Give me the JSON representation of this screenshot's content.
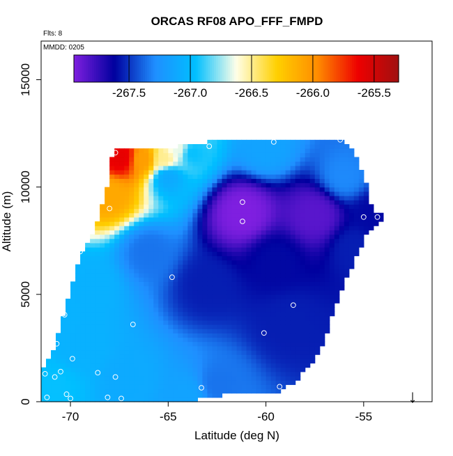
{
  "chart_data": {
    "type": "heatmap",
    "title": "ORCAS RF08 APO_FFF_FMPD",
    "flights_note": "Flts: 8",
    "date_note": "MMDD: 0205",
    "xlabel": "Latitude (deg N)",
    "ylabel": "Altitude (m)",
    "xlim": [
      -71.5,
      -51.5
    ],
    "ylim": [
      0,
      16800
    ],
    "xticks": [
      -70,
      -65,
      -60,
      -55
    ],
    "xtick_labels": [
      "-70",
      "-65",
      "-60",
      "-55"
    ],
    "yticks": [
      0,
      5000,
      10000,
      15000
    ],
    "ytick_labels": [
      "0",
      "5000",
      "10000",
      "15000"
    ],
    "colorbar": {
      "min": -267.95,
      "max": -265.3,
      "ticks": [
        -267.5,
        -267.0,
        -266.5,
        -266.0,
        -265.5
      ],
      "tick_labels": [
        "-267.5",
        "-267.0",
        "-266.5",
        "-266.0",
        "-265.5"
      ],
      "colors": [
        "#7f1fe0",
        "#00009e",
        "#1f8fff",
        "#00bfff",
        "#ffffe8",
        "#ffd000",
        "#ff8c00",
        "#ee0000",
        "#a01010"
      ]
    },
    "field_sources": [
      {
        "lat": -61.2,
        "alt": 8800,
        "value": -267.95,
        "w": 1.7
      },
      {
        "lat": -57.5,
        "alt": 8700,
        "value": -267.85,
        "w": 1.5
      },
      {
        "lat": -59.5,
        "alt": 6600,
        "value": -267.6,
        "w": 1.4
      },
      {
        "lat": -58.8,
        "alt": 3700,
        "value": -267.55,
        "w": 1.2
      },
      {
        "lat": -63.0,
        "alt": 5500,
        "value": -267.55,
        "w": 1.0
      },
      {
        "lat": -66.0,
        "alt": 7000,
        "value": -267.35,
        "w": 0.8
      },
      {
        "lat": -55.5,
        "alt": 7200,
        "value": -267.55,
        "w": 1.0
      },
      {
        "lat": -54.5,
        "alt": 8700,
        "value": -267.6,
        "w": 1.0
      },
      {
        "lat": -56.0,
        "alt": 10500,
        "value": -267.3,
        "w": 0.9
      },
      {
        "lat": -60.0,
        "alt": 11800,
        "value": -267.15,
        "w": 1.0
      },
      {
        "lat": -65.0,
        "alt": 10500,
        "value": -267.1,
        "w": 0.8
      },
      {
        "lat": -69.5,
        "alt": 2500,
        "value": -267.05,
        "w": 1.0
      },
      {
        "lat": -67.0,
        "alt": 1000,
        "value": -267.1,
        "w": 1.0
      },
      {
        "lat": -64.0,
        "alt": 300,
        "value": -267.15,
        "w": 0.9
      },
      {
        "lat": -62.5,
        "alt": 800,
        "value": -267.35,
        "w": 0.8
      },
      {
        "lat": -70.8,
        "alt": 800,
        "value": -266.95,
        "w": 0.8
      },
      {
        "lat": -69.0,
        "alt": 5500,
        "value": -267.05,
        "w": 0.8
      },
      {
        "lat": -67.4,
        "alt": 11400,
        "value": -265.6,
        "w": 1.2
      },
      {
        "lat": -66.3,
        "alt": 11300,
        "value": -266.05,
        "w": 0.8
      },
      {
        "lat": -65.2,
        "alt": 11300,
        "value": -266.5,
        "w": 0.7
      },
      {
        "lat": -68.0,
        "alt": 9700,
        "value": -266.1,
        "w": 0.9
      },
      {
        "lat": -64.5,
        "alt": 11800,
        "value": -266.65,
        "w": 0.6
      },
      {
        "lat": -63.8,
        "alt": 11600,
        "value": -266.95,
        "w": 0.6
      }
    ],
    "sample_points": [
      {
        "lat": -67.7,
        "alt": 11600
      },
      {
        "lat": -62.9,
        "alt": 11900
      },
      {
        "lat": -59.6,
        "alt": 12100
      },
      {
        "lat": -56.2,
        "alt": 12200
      },
      {
        "lat": -68.0,
        "alt": 9000
      },
      {
        "lat": -61.2,
        "alt": 9300
      },
      {
        "lat": -61.2,
        "alt": 8400
      },
      {
        "lat": -55.0,
        "alt": 8600
      },
      {
        "lat": -54.3,
        "alt": 8600
      },
      {
        "lat": -69.5,
        "alt": 7000
      },
      {
        "lat": -64.8,
        "alt": 5800
      },
      {
        "lat": -70.2,
        "alt": 5500
      },
      {
        "lat": -58.6,
        "alt": 4500
      },
      {
        "lat": -70.5,
        "alt": 4100
      },
      {
        "lat": -70.3,
        "alt": 4050
      },
      {
        "lat": -66.8,
        "alt": 3600
      },
      {
        "lat": -60.1,
        "alt": 3200
      },
      {
        "lat": -70.7,
        "alt": 2700
      },
      {
        "lat": -56.8,
        "alt": 2200
      },
      {
        "lat": -69.9,
        "alt": 2000
      },
      {
        "lat": -70.5,
        "alt": 1400
      },
      {
        "lat": -68.6,
        "alt": 1350
      },
      {
        "lat": -71.3,
        "alt": 1300
      },
      {
        "lat": -70.8,
        "alt": 1150
      },
      {
        "lat": -67.7,
        "alt": 1150
      },
      {
        "lat": -63.3,
        "alt": 650
      },
      {
        "lat": -59.3,
        "alt": 700
      },
      {
        "lat": -70.2,
        "alt": 350
      },
      {
        "lat": -71.2,
        "alt": 200
      },
      {
        "lat": -70.0,
        "alt": 150
      },
      {
        "lat": -68.1,
        "alt": 200
      },
      {
        "lat": -67.4,
        "alt": 150
      }
    ],
    "footer_arrow": "↓"
  }
}
